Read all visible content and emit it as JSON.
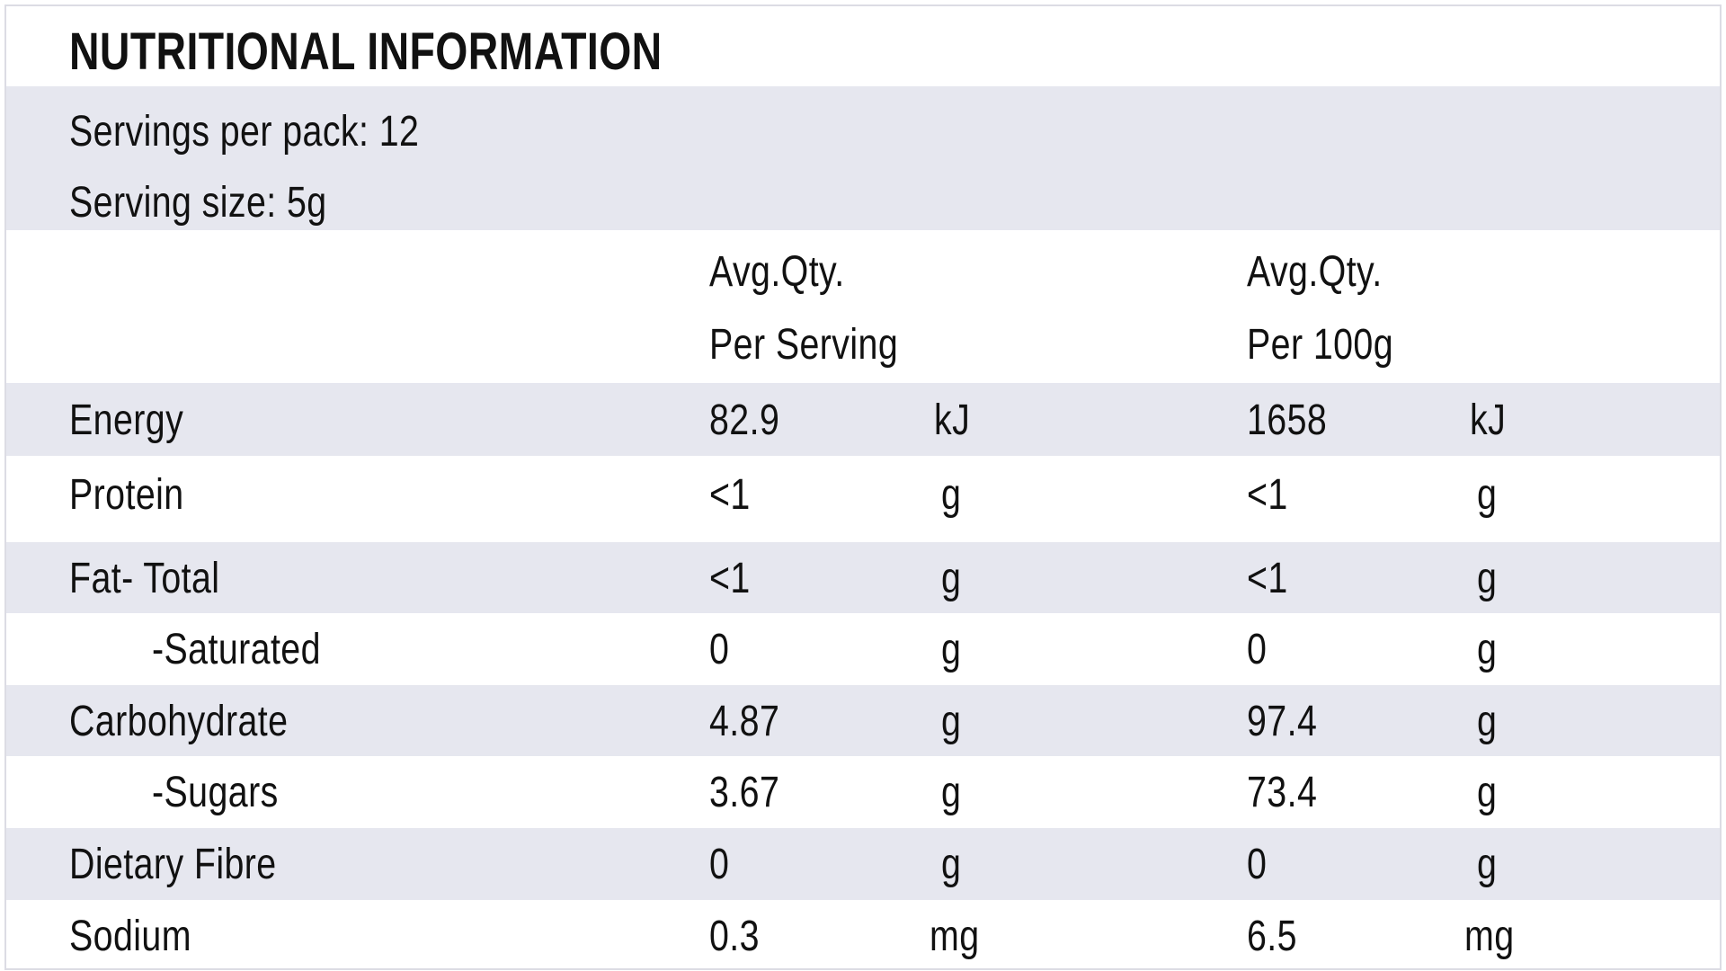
{
  "title": "NUTRITIONAL INFORMATION",
  "servings_per_pack": "Servings per pack: 12",
  "serving_size": "Serving size: 5g",
  "header": {
    "col1_line1": "Avg.Qty.",
    "col1_line2": "Per Serving",
    "col2_line1": "Avg.Qty.",
    "col2_line2": "Per 100g"
  },
  "rows": [
    {
      "name": "Energy",
      "per_serving": "82.9",
      "unit_serving": "kJ",
      "per_100g": "1658",
      "unit_100g": "kJ"
    },
    {
      "name": "Protein",
      "per_serving": "<1",
      "unit_serving": "g",
      "per_100g": "<1",
      "unit_100g": "g"
    },
    {
      "name": "Fat- Total",
      "per_serving": "<1",
      "unit_serving": "g",
      "per_100g": "<1",
      "unit_100g": "g"
    },
    {
      "name": "-Saturated",
      "per_serving": "0",
      "unit_serving": "g",
      "per_100g": "0",
      "unit_100g": "g"
    },
    {
      "name": "Carbohydrate",
      "per_serving": "4.87",
      "unit_serving": "g",
      "per_100g": "97.4",
      "unit_100g": "g"
    },
    {
      "name": "-Sugars",
      "per_serving": "3.67",
      "unit_serving": "g",
      "per_100g": "73.4",
      "unit_100g": "g"
    },
    {
      "name": "Dietary Fibre",
      "per_serving": "0",
      "unit_serving": "g",
      "per_100g": "0",
      "unit_100g": "g"
    },
    {
      "name": "Sodium",
      "per_serving": "0.3",
      "unit_serving": "mg",
      "per_100g": "6.5",
      "unit_100g": "mg"
    }
  ],
  "colors": {
    "shade": "#e6e7ef",
    "text": "#111111",
    "border": "#dcdce4"
  }
}
